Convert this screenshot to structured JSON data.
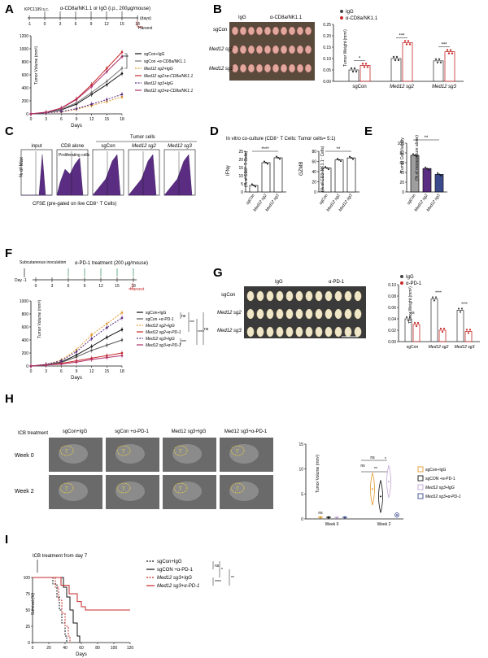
{
  "panels": {
    "A": {
      "letter": "A",
      "schedule_text": "KPC1199 s.c.",
      "treatment_text": "α-CD8a/NK1.1 or IgG (i.p., 200μg/mouse)",
      "days_unit": "(days)",
      "harvest": "Harvest",
      "sched_ticks": [
        "-1",
        "0",
        "3",
        "6",
        "9",
        "12",
        "15",
        "18"
      ],
      "ylabel": "Tumor Volume (mm³)",
      "xlabel": "Days",
      "yticks": [
        "0",
        "200",
        "400",
        "600",
        "800",
        "1000",
        "1200"
      ],
      "xticks": [
        "0",
        "3",
        "6",
        "9",
        "12",
        "15",
        "18"
      ],
      "sig": "****",
      "legend": [
        "sgCon+IgG",
        "sgCon +α-CD8a/NK1.1",
        "Med12 sg2+IgG",
        "Med12 sg2+α-CD8a/NK1.1",
        "Med12 sg3+IgG",
        "Med12 sg3+α-CD8a/NK1.1"
      ]
    },
    "B": {
      "letter": "B",
      "col_igg": "IgG",
      "col_anti": "α-CD8a/NK1.1",
      "rows": [
        "sgCon",
        "Med12 sg2",
        "Med12 sg3"
      ],
      "legend": [
        "IgG",
        "α-CD8a/NK1.1"
      ],
      "ylabel": "Tumor Weight (mm³)",
      "yticks": [
        "0.00",
        "0.05",
        "0.10",
        "0.15",
        "0.20",
        "0.25"
      ],
      "xcats": [
        "sgCon",
        "Med12 sg2",
        "Med12 sg3"
      ],
      "sigs": [
        "*",
        "***",
        "***"
      ]
    },
    "C": {
      "letter": "C",
      "ylabel": "% of Max",
      "xlabel": "CFSE (pre-gated on live CD8⁺ T Cells)",
      "header_tumor": "Tumor cells",
      "cols": [
        "input",
        "CD8 alone",
        "sgCon",
        "Med12 sg2",
        "Med12 sg3"
      ],
      "proliferating": "Proliferating cells"
    },
    "D": {
      "letter": "D",
      "title": "In vitro co-culture (CD8⁺ T Cells: Tumor cells= 5:1)",
      "left_ylabel": "IFNγ",
      "left_ylabel2": "(% of CD8⁺ T Cells)",
      "right_ylabel": "GZMB",
      "right_ylabel2": "(% of CD3⁺NK1.1⁻ Cells)",
      "left_yticks": [
        "0",
        "5",
        "10",
        "15",
        "20",
        "25"
      ],
      "right_yticks": [
        "0",
        "20",
        "40",
        "60",
        "80"
      ],
      "xcats": [
        "sgCon",
        "Med12 sg2",
        "Med12 sg3"
      ],
      "sig_left": "****",
      "sig_right": "**"
    },
    "E": {
      "letter": "E",
      "ylabel": "Tumor Cell Viability",
      "ylabel2": "(% of monoculture alone)",
      "yticks": [
        "0",
        "20",
        "40",
        "60",
        "80",
        "100"
      ],
      "xcats": [
        "sgCon",
        "Med12 sg2",
        "Med12 sg3"
      ],
      "sig": "**"
    },
    "F": {
      "letter": "F",
      "inoculation": "Subcutaneous inoculation",
      "treatment": "α-PD-1 treatment (200 μg/mouse)",
      "day_label": "Day -1",
      "sched_ticks": [
        "0",
        "3",
        "6",
        "9",
        "12",
        "15",
        "18"
      ],
      "harvest": "Harvest",
      "ylabel": "Tumor Volume (mm³)",
      "xlabel": "Days",
      "yticks": [
        "0",
        "200",
        "400",
        "600",
        "800",
        "1000"
      ],
      "xticks": [
        "0",
        "3",
        "6",
        "9",
        "12",
        "15",
        "18"
      ],
      "legend": [
        "sgCon+IgG",
        "sgCon +α-PD-1",
        "Med12 sg2+IgG",
        "Med12 sg2+α-PD-1",
        "Med12 sg3+IgG",
        "Med12 sg3+α-PD-1"
      ],
      "sigs": [
        "ns",
        "***",
        "****",
        "***",
        "ns"
      ]
    },
    "G": {
      "letter": "G",
      "col_igg": "IgG",
      "col_anti": "α-PD-1",
      "rows": [
        "sgCon",
        "Med12 sg2",
        "Med12 sg3"
      ],
      "legend": [
        "IgG",
        "α-PD-1"
      ],
      "ylabel": "Tumor Weight (mm³)",
      "yticks": [
        "0.00",
        "0.02",
        "0.04",
        "0.06",
        "0.08",
        "0.10"
      ],
      "xcats": [
        "sgCon",
        "Med12 sg2",
        "Med12 sg3"
      ],
      "sigs": [
        "ns",
        "****",
        "****"
      ]
    },
    "H": {
      "letter": "H",
      "icb": "ICB treatment",
      "cols": [
        "sgCon+IgG",
        "sgCon +α-PD-1",
        "Med12 sg3+IgG",
        "Med12 sg3+α-PD-1"
      ],
      "rows": [
        "Week 0",
        "Week 2"
      ],
      "ylabel": "Tumor Volume (mm³)",
      "yticks": [
        "0",
        "5",
        "10",
        "15"
      ],
      "xcats": [
        "Week 0",
        "Week 2"
      ],
      "legend": [
        "sgCon+IgG",
        "sgCON +α-PD-1",
        "Med12 sg3+IgG",
        "Med12 sg3+α-PD-1"
      ],
      "sigs": [
        "ns",
        "ns",
        "ns",
        "*",
        "**"
      ],
      "tumor_marks": [
        "T",
        "T",
        "T",
        "T",
        "T",
        "T"
      ]
    },
    "I": {
      "letter": "I",
      "icb": "ICB treatment from day 7",
      "ylabel": "Survival (%)",
      "xlabel": "Days",
      "yticks": [
        "0",
        "25",
        "50",
        "75",
        "100"
      ],
      "xticks": [
        "0",
        "20",
        "40",
        "60",
        "80",
        "100",
        "120"
      ],
      "legend": [
        "sgCon+IgG",
        "sgCON +α-PD-1",
        "Med12 sg3+IgG",
        "Med12 sg3+α-PD-1"
      ],
      "sigs": [
        "ns",
        "*",
        "****",
        "**"
      ]
    }
  },
  "colors": {
    "black": "#111111",
    "orange": "#e39a2d",
    "red": "#c62828",
    "purple": "#5a2d82",
    "grey": "#9e9e9e",
    "lavender": "#c5a7d8",
    "navy": "#3b4a8c",
    "green": "#2e8b57"
  },
  "chart_data": [
    {
      "type": "line",
      "panel": "A",
      "x": [
        0,
        3,
        6,
        9,
        12,
        15,
        18
      ],
      "ylim": [
        0,
        1200
      ],
      "xlabel": "Days",
      "ylabel": "Tumor Volume (mm³)",
      "series": [
        {
          "name": "sgCon+IgG",
          "color": "#111111",
          "values": [
            0,
            20,
            60,
            150,
            300,
            450,
            620
          ]
        },
        {
          "name": "sgCon +α-CD8a/NK1.1",
          "color": "#777777",
          "values": [
            0,
            25,
            70,
            170,
            330,
            500,
            700
          ]
        },
        {
          "name": "Med12 sg2+IgG",
          "color": "#e39a2d",
          "values": [
            0,
            15,
            30,
            70,
            130,
            190,
            260
          ]
        },
        {
          "name": "Med12 sg2+α-CD8a/NK1.1",
          "color": "#c62828",
          "values": [
            0,
            25,
            90,
            230,
            450,
            700,
            950
          ]
        },
        {
          "name": "Med12 sg3+IgG",
          "color": "#5a2d82",
          "values": [
            0,
            15,
            35,
            80,
            150,
            220,
            300
          ]
        },
        {
          "name": "Med12 sg3+α-CD8a/NK1.1",
          "color": "#b0306a",
          "values": [
            0,
            25,
            85,
            220,
            420,
            650,
            880
          ]
        }
      ]
    },
    {
      "type": "bar",
      "panel": "B",
      "categories": [
        "sgCon",
        "Med12 sg2",
        "Med12 sg3"
      ],
      "ylim": [
        0,
        0.25
      ],
      "series": [
        {
          "name": "IgG",
          "color": "#444444",
          "values": [
            0.05,
            0.1,
            0.09
          ]
        },
        {
          "name": "α-CD8a/NK1.1",
          "color": "#c62828",
          "values": [
            0.07,
            0.17,
            0.13
          ]
        }
      ]
    },
    {
      "type": "bar",
      "panel": "D-left",
      "categories": [
        "sgCon",
        "Med12 sg2",
        "Med12 sg3"
      ],
      "ylim": [
        0,
        25
      ],
      "values": [
        4,
        18,
        21
      ]
    },
    {
      "type": "bar",
      "panel": "D-right",
      "categories": [
        "sgCon",
        "Med12 sg2",
        "Med12 sg3"
      ],
      "ylim": [
        0,
        80
      ],
      "values": [
        47,
        63,
        67
      ]
    },
    {
      "type": "bar",
      "panel": "E",
      "categories": [
        "sgCon",
        "Med12 sg2",
        "Med12 sg3"
      ],
      "ylim": [
        0,
        100
      ],
      "values": [
        75,
        48,
        36
      ],
      "colors": [
        "#9e9e9e",
        "#5a2d82",
        "#3b4a8c"
      ]
    },
    {
      "type": "line",
      "panel": "F",
      "x": [
        0,
        3,
        6,
        9,
        12,
        15,
        18
      ],
      "ylim": [
        0,
        1000
      ],
      "xlabel": "Days",
      "ylabel": "Tumor Volume (mm³)",
      "series": [
        {
          "name": "sgCon+IgG",
          "color": "#111111",
          "values": [
            0,
            20,
            60,
            170,
            300,
            440,
            560
          ]
        },
        {
          "name": "sgCon +α-PD-1",
          "color": "#555555",
          "values": [
            0,
            20,
            55,
            140,
            240,
            320,
            400
          ]
        },
        {
          "name": "Med12 sg2+IgG",
          "color": "#e39a2d",
          "values": [
            0,
            25,
            90,
            250,
            480,
            650,
            820
          ]
        },
        {
          "name": "Med12 sg2+α-PD-1",
          "color": "#c62828",
          "values": [
            0,
            15,
            40,
            80,
            120,
            160,
            200
          ]
        },
        {
          "name": "Med12 sg3+IgG",
          "color": "#5a2d82",
          "values": [
            0,
            25,
            80,
            220,
            420,
            590,
            740
          ]
        },
        {
          "name": "Med12 sg3+α-PD-1",
          "color": "#b0306a",
          "values": [
            0,
            15,
            30,
            60,
            100,
            130,
            160
          ]
        }
      ]
    },
    {
      "type": "bar",
      "panel": "G",
      "categories": [
        "sgCon",
        "Med12 sg2",
        "Med12 sg3"
      ],
      "ylim": [
        0,
        0.1
      ],
      "series": [
        {
          "name": "IgG",
          "color": "#444444",
          "values": [
            0.04,
            0.075,
            0.055
          ]
        },
        {
          "name": "α-PD-1",
          "color": "#c62828",
          "values": [
            0.03,
            0.02,
            0.018
          ]
        }
      ]
    },
    {
      "type": "scatter",
      "panel": "H",
      "categories": [
        "Week 0",
        "Week 2"
      ],
      "ylim": [
        0,
        15
      ],
      "series": [
        {
          "name": "sgCon+IgG",
          "color": "#e39a2d",
          "values": [
            0.3,
            6.0
          ]
        },
        {
          "name": "sgCON +α-PD-1",
          "color": "#111111",
          "values": [
            0.3,
            4.5
          ]
        },
        {
          "name": "Med12 sg3+IgG",
          "color": "#c5a7d8",
          "values": [
            0.3,
            7.5
          ]
        },
        {
          "name": "Med12 sg3+α-PD-1",
          "color": "#3b4a8c",
          "values": [
            0.3,
            0.8
          ]
        }
      ]
    },
    {
      "type": "line",
      "panel": "I",
      "xlim": [
        0,
        120
      ],
      "ylim": [
        0,
        100
      ],
      "xlabel": "Days",
      "ylabel": "Survival (%)",
      "series": [
        {
          "name": "sgCon+IgG",
          "color": "#111111",
          "x": [
            0,
            25,
            30,
            33,
            36,
            40,
            42
          ],
          "values": [
            100,
            90,
            70,
            50,
            30,
            10,
            0
          ]
        },
        {
          "name": "sgCON +α-PD-1",
          "color": "#111111",
          "x": [
            0,
            38,
            42,
            46,
            50,
            55,
            58
          ],
          "values": [
            100,
            85,
            70,
            50,
            30,
            10,
            0
          ]
        },
        {
          "name": "Med12 sg3+IgG",
          "color": "#c62828",
          "x": [
            0,
            28,
            32,
            36,
            40,
            44,
            46
          ],
          "values": [
            100,
            85,
            65,
            45,
            25,
            10,
            0
          ]
        },
        {
          "name": "Med12 sg3+α-PD-1",
          "color": "#c62828",
          "x": [
            0,
            35,
            45,
            55,
            60,
            65,
            120
          ],
          "values": [
            100,
            88,
            75,
            63,
            55,
            50,
            50
          ]
        }
      ]
    }
  ]
}
